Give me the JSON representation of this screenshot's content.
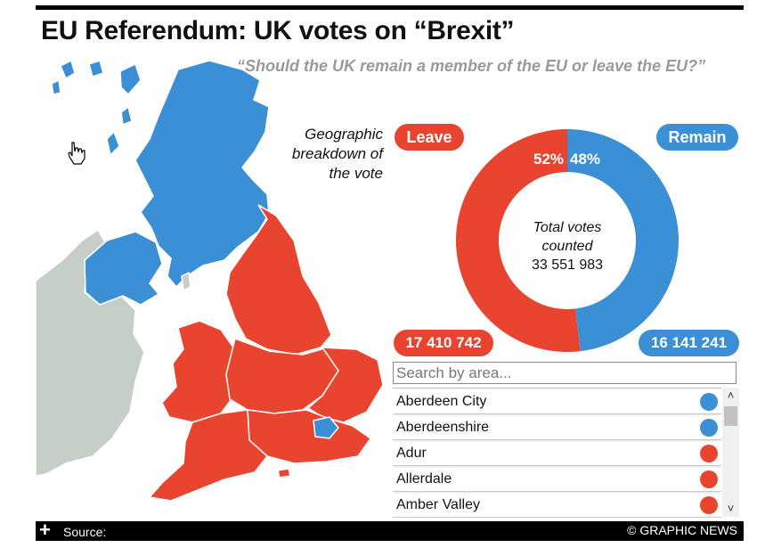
{
  "title": "EU Referendum: UK votes on “Brexit”",
  "question": "“Should the UK remain a member of the EU or leave the EU?”",
  "map_note": [
    "Geographic",
    "breakdown of",
    "the vote"
  ],
  "colors": {
    "leave": "#e8442f",
    "remain": "#3b8fd4",
    "land_other": "#c6cec8",
    "accent": "#000000"
  },
  "chart_data": {
    "type": "pie",
    "donut": true,
    "categories": [
      "Leave",
      "Remain"
    ],
    "values": [
      17410742,
      16141241
    ],
    "percent_labels": [
      "52%",
      "48%"
    ],
    "center_text": [
      "Total votes",
      "counted",
      "33 551 983"
    ],
    "totals": {
      "leave": "17 410 742",
      "remain": "16 141 241"
    }
  },
  "legend": {
    "leave": "Leave",
    "remain": "Remain"
  },
  "search": {
    "placeholder": "Search by area..."
  },
  "areas": [
    {
      "name": "Aberdeen City",
      "result": "remain"
    },
    {
      "name": "Aberdeenshire",
      "result": "remain"
    },
    {
      "name": "Adur",
      "result": "leave"
    },
    {
      "name": "Allerdale",
      "result": "leave"
    },
    {
      "name": "Amber Valley",
      "result": "leave"
    }
  ],
  "footer": {
    "source_label": "Source:",
    "credit": "© GRAPHIC NEWS"
  },
  "icons": {
    "expand": "plus-icon",
    "scroll_up": "chevron-up-icon",
    "scroll_down": "chevron-down-icon",
    "cursor": "hand-cursor-icon"
  }
}
